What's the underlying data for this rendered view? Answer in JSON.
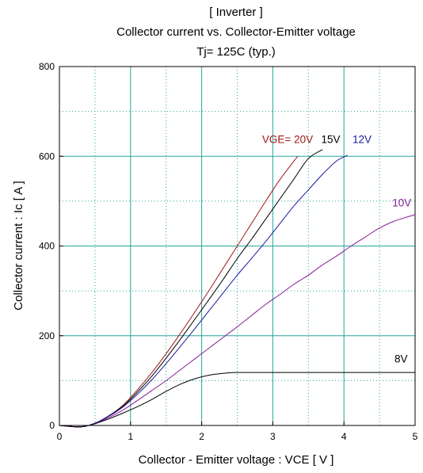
{
  "chart_data": {
    "type": "line",
    "title": [
      "[ Inverter ]",
      "Collector current  vs.  Collector-Emitter voltage",
      "Tj= 125C  (typ.)"
    ],
    "xlabel": "Collector - Emitter voltage  :  VCE  [ V ]",
    "ylabel": "Collector current  :  Ic  [ A ]",
    "xlim": [
      0,
      5
    ],
    "ylim": [
      0,
      800
    ],
    "xticks": [
      0,
      1,
      2,
      3,
      4,
      5
    ],
    "yticks": [
      0,
      200,
      400,
      600,
      800
    ],
    "grid": true,
    "series": [
      {
        "name": "VGE= 20V",
        "color": "#a01818",
        "x": [
          0,
          0.3,
          0.5,
          0.7,
          0.9,
          1.1,
          1.3,
          1.5,
          1.7,
          1.9,
          2.1,
          2.3,
          2.5,
          2.7,
          2.9,
          3.1,
          3.35
        ],
        "y": [
          0,
          -3,
          5,
          22,
          46,
          80,
          118,
          160,
          205,
          252,
          300,
          350,
          400,
          450,
          500,
          548,
          600
        ]
      },
      {
        "name": "15V",
        "color": "#000000",
        "x": [
          0,
          0.3,
          0.5,
          0.7,
          0.9,
          1.1,
          1.3,
          1.5,
          1.7,
          1.9,
          2.1,
          2.3,
          2.5,
          2.7,
          2.9,
          3.1,
          3.3,
          3.5,
          3.7
        ],
        "y": [
          0,
          -3,
          5,
          22,
          44,
          75,
          110,
          150,
          192,
          236,
          280,
          325,
          372,
          415,
          460,
          505,
          550,
          595,
          615
        ]
      },
      {
        "name": "12V",
        "color": "#1a1aa0",
        "x": [
          0,
          0.3,
          0.5,
          0.7,
          0.9,
          1.1,
          1.3,
          1.5,
          1.7,
          1.9,
          2.1,
          2.3,
          2.5,
          2.7,
          2.9,
          3.1,
          3.3,
          3.5,
          3.7,
          3.9,
          4.05
        ],
        "y": [
          0,
          -3,
          5,
          21,
          42,
          70,
          102,
          138,
          176,
          215,
          255,
          295,
          335,
          372,
          410,
          450,
          490,
          525,
          560,
          590,
          602
        ]
      },
      {
        "name": "10V",
        "color": "#8a1a9a",
        "x": [
          0,
          0.3,
          0.5,
          0.7,
          0.9,
          1.1,
          1.3,
          1.5,
          1.7,
          1.9,
          2.1,
          2.3,
          2.5,
          2.7,
          2.9,
          3.1,
          3.3,
          3.5,
          3.7,
          3.9,
          4.1,
          4.3,
          4.5,
          4.7,
          5.0
        ],
        "y": [
          0,
          -3,
          4,
          18,
          35,
          56,
          78,
          100,
          124,
          148,
          172,
          196,
          220,
          245,
          270,
          292,
          315,
          335,
          358,
          378,
          400,
          420,
          440,
          455,
          470
        ]
      },
      {
        "name": "8V",
        "color": "#000000",
        "x": [
          0,
          0.3,
          0.5,
          0.7,
          0.9,
          1.1,
          1.3,
          1.5,
          1.7,
          1.9,
          2.1,
          2.3,
          2.5,
          3.0,
          3.5,
          4.0,
          4.5,
          5.0
        ],
        "y": [
          0,
          -3,
          4,
          15,
          28,
          42,
          58,
          76,
          92,
          104,
          112,
          116,
          118,
          118,
          118,
          118,
          118,
          118
        ]
      }
    ]
  }
}
